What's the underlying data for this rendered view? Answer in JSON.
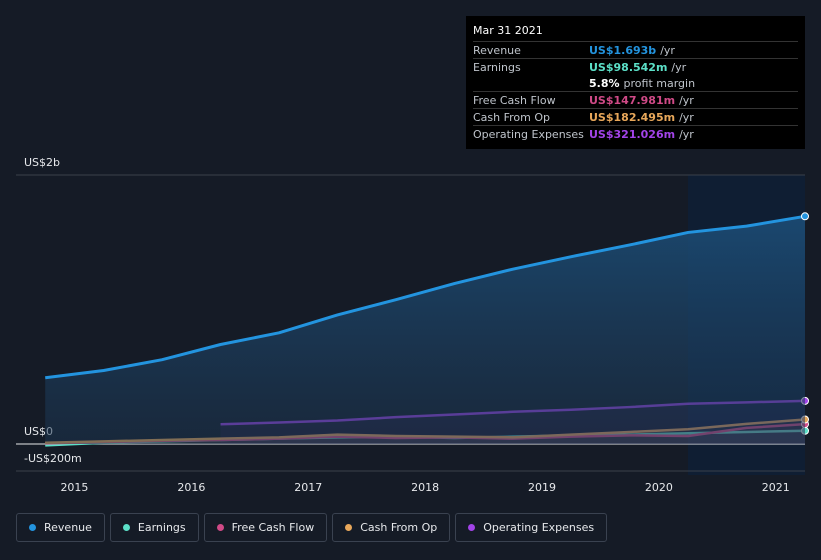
{
  "chart_data": {
    "type": "line",
    "x": [
      2014.75,
      2015.25,
      2015.75,
      2016.25,
      2016.75,
      2017.25,
      2017.75,
      2018.25,
      2018.75,
      2019.25,
      2019.75,
      2020.25,
      2020.75,
      2021.25
    ],
    "xlim": [
      2014.5,
      2021.25
    ],
    "xticks": [
      2015,
      2016,
      2017,
      2018,
      2019,
      2020,
      2021
    ],
    "ylim": [
      -230,
      2000
    ],
    "yticks": [
      {
        "value": 2000,
        "label": "US$2b"
      },
      {
        "value": 0,
        "label": "US$0"
      },
      {
        "value": -200,
        "label": "-US$200m"
      }
    ],
    "grid": true,
    "series": [
      {
        "name": "Revenue",
        "color": "#2394df",
        "values": [
          493,
          547,
          627,
          740,
          827,
          960,
          1073,
          1193,
          1300,
          1393,
          1480,
          1573,
          1620,
          1693
        ]
      },
      {
        "name": "Earnings",
        "color": "#5ce0c8",
        "values": [
          -10,
          10,
          20,
          30,
          40,
          50,
          55,
          45,
          55,
          65,
          70,
          80,
          90,
          98.542
        ]
      },
      {
        "name": "Free Cash Flow",
        "color": "#d04a87",
        "values": [
          5,
          15,
          25,
          30,
          40,
          55,
          45,
          50,
          40,
          55,
          65,
          60,
          120,
          147.981
        ]
      },
      {
        "name": "Cash From Op",
        "color": "#e8a75a",
        "values": [
          10,
          20,
          30,
          40,
          50,
          70,
          60,
          55,
          50,
          70,
          90,
          110,
          150,
          182.495
        ]
      },
      {
        "name": "Operating Expenses",
        "color": "#a243e8",
        "values": [
          null,
          null,
          null,
          147,
          160,
          175,
          200,
          220,
          240,
          255,
          275,
          300,
          310,
          321.026
        ]
      }
    ],
    "tooltip": {
      "date": "Mar 31 2021",
      "rows": [
        {
          "label": "Revenue",
          "value": "US$1.693b",
          "unit": "/yr"
        },
        {
          "label": "Earnings",
          "value": "US$98.542m",
          "unit": "/yr"
        },
        {
          "label": "",
          "value": "5.8%",
          "unit": "profit margin"
        },
        {
          "label": "Free Cash Flow",
          "value": "US$147.981m",
          "unit": "/yr"
        },
        {
          "label": "Cash From Op",
          "value": "US$182.495m",
          "unit": "/yr"
        },
        {
          "label": "Operating Expenses",
          "value": "US$321.026m",
          "unit": "/yr"
        }
      ]
    }
  }
}
